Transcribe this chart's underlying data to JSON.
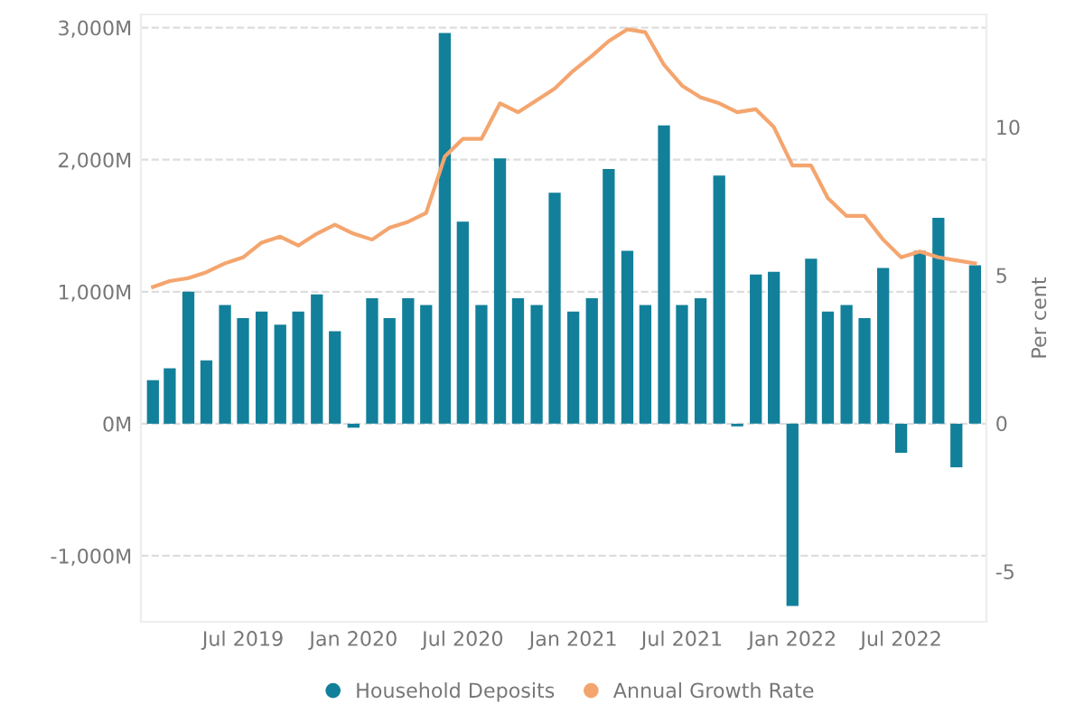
{
  "chart_data": {
    "type": "bar",
    "y2label": "Per cent",
    "x": [
      "2019-02",
      "2019-03",
      "2019-04",
      "2019-05",
      "2019-06",
      "2019-07",
      "2019-08",
      "2019-09",
      "2019-10",
      "2019-11",
      "2019-12",
      "2020-01",
      "2020-02",
      "2020-03",
      "2020-04",
      "2020-05",
      "2020-06",
      "2020-07",
      "2020-08",
      "2020-09",
      "2020-10",
      "2020-11",
      "2020-12",
      "2021-01",
      "2021-02",
      "2021-03",
      "2021-04",
      "2021-05",
      "2021-06",
      "2021-07",
      "2021-08",
      "2021-09",
      "2021-10",
      "2021-11",
      "2021-12",
      "2022-01",
      "2022-02",
      "2022-03",
      "2022-04",
      "2022-05",
      "2022-06",
      "2022-07",
      "2022-08",
      "2022-09",
      "2022-10",
      "2022-11"
    ],
    "series": [
      {
        "name": "Household Deposits",
        "color": "#12809a",
        "values": [
          330,
          420,
          1000,
          480,
          900,
          800,
          850,
          750,
          850,
          980,
          700,
          -30,
          950,
          800,
          950,
          900,
          2960,
          1530,
          900,
          2010,
          950,
          900,
          1750,
          850,
          950,
          1930,
          1310,
          900,
          2260,
          900,
          950,
          1880,
          -20,
          1130,
          1150,
          -1380,
          1250,
          850,
          900,
          800,
          1180,
          -220,
          1310,
          1560,
          -330,
          1200
        ]
      },
      {
        "name": "Annual Growth Rate",
        "type": "line",
        "axis": "y2",
        "color": "#f4a56e",
        "values": [
          4.6,
          4.8,
          4.9,
          5.1,
          5.4,
          5.6,
          6.1,
          6.3,
          6.0,
          6.4,
          6.7,
          6.4,
          6.2,
          6.6,
          6.8,
          7.1,
          9.0,
          9.6,
          9.6,
          10.8,
          10.5,
          10.9,
          11.3,
          11.9,
          12.4,
          12.9,
          13.3,
          13.2,
          12.1,
          11.4,
          11.0,
          10.8,
          10.5,
          10.6,
          10.0,
          8.7,
          8.7,
          7.6,
          7.0,
          7.0,
          6.2,
          5.6,
          5.8,
          5.6,
          5.5,
          5.4
        ]
      }
    ],
    "ylim": [
      -1500,
      3100
    ],
    "yticks": [
      {
        "value": -1000,
        "label": "-1,000M"
      },
      {
        "value": 0,
        "label": "0M"
      },
      {
        "value": 1000,
        "label": "1,000M"
      },
      {
        "value": 2000,
        "label": "2,000M"
      },
      {
        "value": 3000,
        "label": "3,000M"
      }
    ],
    "y2lim": [
      -6.7,
      13.8
    ],
    "y2ticks": [
      -5,
      0,
      5,
      10
    ],
    "xticks": [
      {
        "value": "2019-07",
        "label": "Jul 2019"
      },
      {
        "value": "2020-01",
        "label": "Jan 2020"
      },
      {
        "value": "2020-07",
        "label": "Jul 2020"
      },
      {
        "value": "2021-01",
        "label": "Jan 2021"
      },
      {
        "value": "2021-07",
        "label": "Jul 2021"
      },
      {
        "value": "2022-01",
        "label": "Jan 2022"
      },
      {
        "value": "2022-07",
        "label": "Jul 2022"
      }
    ],
    "xlim": [
      "2019-01-12",
      "2022-11-20"
    ],
    "grid": "y",
    "legend": "bottom"
  }
}
